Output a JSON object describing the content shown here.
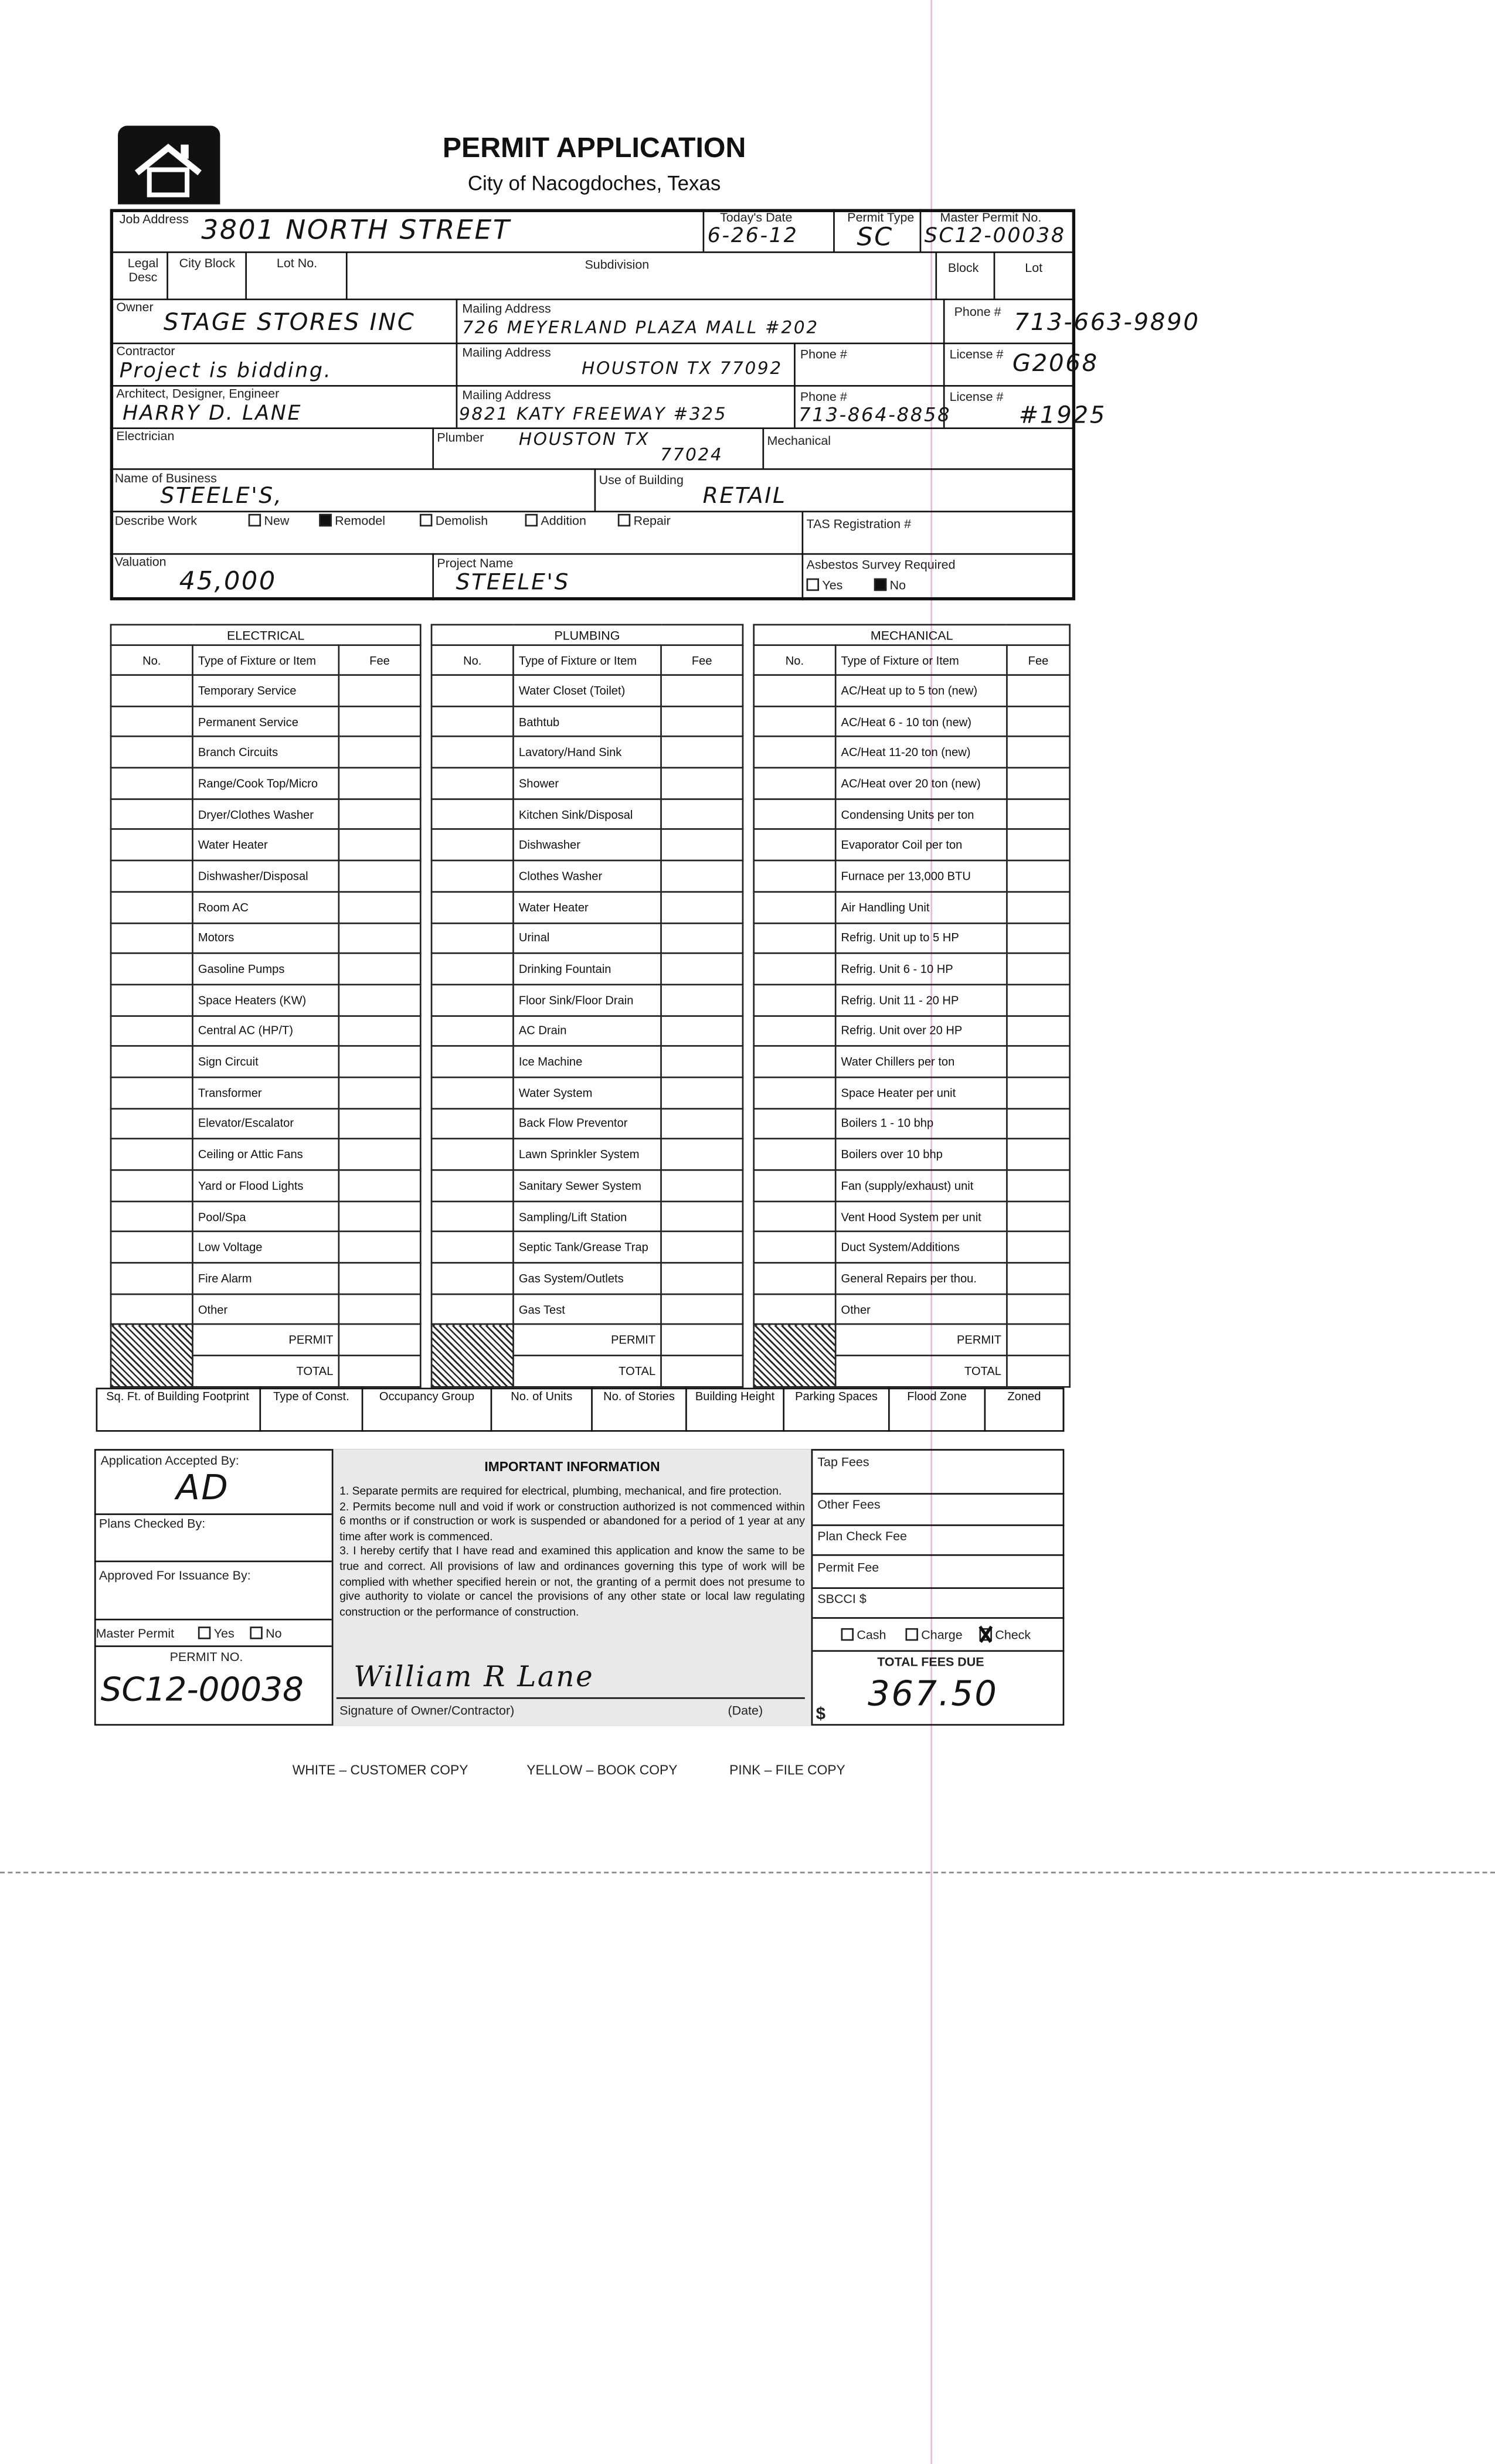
{
  "header": {
    "title": "PERMIT APPLICATION",
    "subtitle": "City of Nacogdoches, Texas",
    "logo_icon": "house-icon"
  },
  "labels": {
    "job_address": "Job Address",
    "todays_date": "Today's Date",
    "permit_type": "Permit Type",
    "master_permit_no": "Master Permit No.",
    "legal_desc": "Legal Desc",
    "city_block": "City Block",
    "lot_no": "Lot No.",
    "subdivision": "Subdivision",
    "block": "Block",
    "lot": "Lot",
    "owner": "Owner",
    "mailing_address": "Mailing Address",
    "phone": "Phone #",
    "contractor": "Contractor",
    "license": "License #",
    "architect": "Architect, Designer, Engineer",
    "electrician": "Electrician",
    "plumber": "Plumber",
    "mechanical": "Mechanical",
    "business_name": "Name of Business",
    "use_of_building": "Use of Building",
    "describe_work": "Describe Work",
    "tas": "TAS Registration #",
    "valuation": "Valuation",
    "project_name": "Project Name",
    "asbestos": "Asbestos Survey Required"
  },
  "describe_work_options": [
    "New",
    "Remodel",
    "Demolish",
    "Addition",
    "Repair"
  ],
  "asbestos_options": [
    "Yes",
    "No"
  ],
  "values": {
    "job_address": "3801 NORTH STREET",
    "todays_date": "6-26-12",
    "permit_type": "SC",
    "master_permit_no": "SC12-00038",
    "owner": "STAGE STORES INC",
    "owner_mailing": "726 MEYERLAND PLAZA MALL #202",
    "owner_mailing_2": "HOUSTON TX 77092",
    "owner_phone": "713-663-9890",
    "contractor": "Project is bidding.",
    "contractor_license": "G2068",
    "architect": "HARRY D. LANE",
    "architect_mailing": "9821 KATY FREEWAY #325",
    "architect_mailing_2": "HOUSTON TX",
    "architect_mailing_3": "77024",
    "architect_phone": "713-864-8858",
    "architect_license": "#1925",
    "business_name": "STEELE'S,",
    "use_of_building": "RETAIL",
    "describe_work_checked": "Remodel",
    "valuation": "45,000",
    "project_name": "STEELE'S",
    "asbestos_checked": "No"
  },
  "tables": [
    {
      "title": "ELECTRICAL",
      "items": [
        "Temporary Service",
        "Permanent Service",
        "Branch Circuits",
        "Range/Cook Top/Micro",
        "Dryer/Clothes Washer",
        "Water Heater",
        "Dishwasher/Disposal",
        "Room AC",
        "Motors",
        "Gasoline Pumps",
        "Space Heaters (KW)",
        "Central AC (HP/T)",
        "Sign Circuit",
        "Transformer",
        "Elevator/Escalator",
        "Ceiling or Attic Fans",
        "Yard or Flood Lights",
        "Pool/Spa",
        "Low Voltage",
        "Fire Alarm",
        "Other"
      ]
    },
    {
      "title": "PLUMBING",
      "items": [
        "Water Closet (Toilet)",
        "Bathtub",
        "Lavatory/Hand Sink",
        "Shower",
        "Kitchen Sink/Disposal",
        "Dishwasher",
        "Clothes Washer",
        "Water Heater",
        "Urinal",
        "Drinking Fountain",
        "Floor Sink/Floor Drain",
        "AC Drain",
        "Ice Machine",
        "Water System",
        "Back Flow Preventor",
        "Lawn Sprinkler System",
        "Sanitary Sewer System",
        "Sampling/Lift Station",
        "Septic Tank/Grease Trap",
        "Gas System/Outlets",
        "Gas Test"
      ]
    },
    {
      "title": "MECHANICAL",
      "items": [
        "AC/Heat up to 5 ton (new)",
        "AC/Heat 6 - 10 ton (new)",
        "AC/Heat 11-20 ton (new)",
        "AC/Heat over 20 ton (new)",
        "Condensing Units per ton",
        "Evaporator Coil per ton",
        "Furnace per 13,000 BTU",
        "Air Handling Unit",
        "Refrig. Unit up to 5 HP",
        "Refrig. Unit 6 - 10 HP",
        "Refrig. Unit 11 - 20 HP",
        "Refrig. Unit over 20 HP",
        "Water Chillers per ton",
        "Space Heater per unit",
        "Boilers 1 - 10 bhp",
        "Boilers over 10 bhp",
        "Fan (supply/exhaust) unit",
        "Vent Hood System per unit",
        "Duct System/Additions",
        "General Repairs per thou.",
        "Other"
      ]
    }
  ],
  "table_cols": {
    "no": "No.",
    "type": "Type of Fixture or Item",
    "fee": "Fee",
    "permit": "PERMIT",
    "total": "TOTAL"
  },
  "building_strip": [
    "Sq. Ft. of Building Footprint",
    "Type of Const.",
    "Occupancy Group",
    "No. of Units",
    "No. of Stories",
    "Building Height",
    "Parking Spaces",
    "Flood Zone",
    "Zoned"
  ],
  "office": {
    "accepted_by": "Application Accepted By:",
    "accepted_initials": "AD",
    "plans_checked": "Plans Checked By:",
    "approved": "Approved For Issuance By:",
    "master_permit": "Master Permit",
    "yes": "Yes",
    "no": "No",
    "permit_no_label": "PERMIT NO.",
    "permit_no": "SC12-00038"
  },
  "info": {
    "title": "IMPORTANT INFORMATION",
    "p1": "1.  Separate permits are required for electrical, plumbing, mechanical, and fire protection.",
    "p2": "2.  Permits become null and void if work or construction authorized is not commenced within 6 months or if construction or work is suspended or abandoned for a period of 1 year at any time after work is commenced.",
    "p3": "3.  I hereby certify that I have read and examined this application and know the same to be true and correct.  All provisions of law and ordinances governing this type of work will be complied with whether specified herein or not, the granting of a permit does not presume to give authority to violate or cancel the provisions of any other state or local law regulating construction or the performance of construction.",
    "signature_label": "Signature of Owner/Contractor)",
    "date_label": "(Date)",
    "signature": "William R Lane"
  },
  "fees": {
    "tap": "Tap Fees",
    "other": "Other Fees",
    "plan_check": "Plan Check Fee",
    "permit": "Permit Fee",
    "sbcci": "SBCCI $",
    "cash": "Cash",
    "charge": "Charge",
    "check": "Check",
    "payment_checked": "Check",
    "total_label": "TOTAL FEES DUE",
    "currency": "$",
    "total": "367.50"
  },
  "footer": {
    "white": "WHITE – CUSTOMER COPY",
    "yellow": "YELLOW – BOOK COPY",
    "pink": "PINK – FILE COPY"
  }
}
